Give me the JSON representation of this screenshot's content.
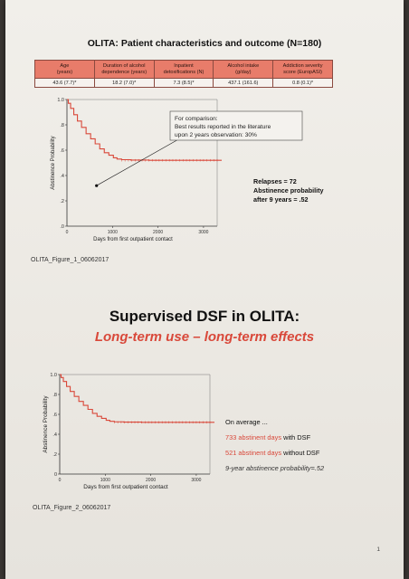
{
  "top": {
    "title": "OLITA: Patient characteristics and outcome (N=180)",
    "table": {
      "headers": [
        {
          "line1": "Age",
          "line2": "(years)"
        },
        {
          "line1": "Duration of alcohol",
          "line2": "dependence (years)"
        },
        {
          "line1": "Inpatient",
          "line2": "detoxifications (N)"
        },
        {
          "line1": "Alcohol intake",
          "line2": "(g/day)"
        },
        {
          "line1": "Addiction severity",
          "line2": "score (EuropASI)"
        }
      ],
      "values": [
        "43.6 (7.7)*",
        "18.2 (7.0)*",
        "7.3 (8.5)*",
        "437.1 (161.6)",
        "0.8 (0.1)*"
      ]
    },
    "caption": "OLITA_Figure_1_06062017",
    "comparison_box": {
      "line1": "For comparison:",
      "line2": "Best results reported in the literature",
      "line3": "upon 2 years observation: 30%"
    },
    "annotation": {
      "line1": "Relapses = 72",
      "line2": "Abstinence probability",
      "line3": "after 9 years = .52"
    }
  },
  "bottom": {
    "heading": "Supervised DSF in OLITA:",
    "subheading": "Long-term use – long-term effects",
    "caption": "OLITA_Figure_2_06062017",
    "notes": {
      "line1": "On average ...",
      "line2_value": "733 abstinent days",
      "line2_rest": " with DSF",
      "line3_value": "521 abstinent days",
      "line3_rest": " without DSF",
      "line4": "9-year abstinence probability=.52"
    }
  },
  "page_number": "1",
  "colors": {
    "curve": "#d9483a",
    "header_fill": "#e87c6a"
  },
  "chart_data": [
    {
      "type": "line",
      "xlabel": "Days from first outpatient contact",
      "ylabel": "Abstinence Probability",
      "xlim": [
        0,
        3300
      ],
      "ylim": [
        0,
        1.0
      ],
      "xticks": [
        "1000",
        "2000",
        "3000"
      ],
      "yticks": [
        ".0",
        ".2",
        ".4",
        ".6",
        ".8",
        "1.0"
      ],
      "annotation_point": {
        "x": 650,
        "y": 0.32
      },
      "x": [
        0,
        30,
        80,
        150,
        230,
        320,
        420,
        520,
        620,
        720,
        820,
        920,
        1020,
        1100,
        1200,
        1400,
        1800,
        2200,
        2600,
        3000,
        3400
      ],
      "y": [
        1.0,
        0.97,
        0.93,
        0.88,
        0.83,
        0.78,
        0.73,
        0.69,
        0.65,
        0.61,
        0.58,
        0.56,
        0.54,
        0.53,
        0.525,
        0.522,
        0.52,
        0.52,
        0.52,
        0.52,
        0.52
      ]
    },
    {
      "type": "line",
      "xlabel": "Days from first outpatient contact",
      "ylabel": "Abstinence Probability",
      "xlim": [
        0,
        3300
      ],
      "ylim": [
        0,
        1.0
      ],
      "xticks": [
        "1000",
        "2000",
        "3000"
      ],
      "yticks": [
        "0",
        ".2",
        ".4",
        ".6",
        ".8",
        "1.0"
      ],
      "x": [
        0,
        30,
        80,
        150,
        230,
        320,
        420,
        520,
        620,
        720,
        820,
        920,
        1020,
        1100,
        1200,
        1400,
        1800,
        2200,
        2600,
        3000,
        3400
      ],
      "y": [
        1.0,
        0.97,
        0.93,
        0.88,
        0.83,
        0.78,
        0.73,
        0.69,
        0.65,
        0.61,
        0.58,
        0.56,
        0.54,
        0.53,
        0.525,
        0.522,
        0.52,
        0.52,
        0.52,
        0.52,
        0.52
      ]
    }
  ]
}
